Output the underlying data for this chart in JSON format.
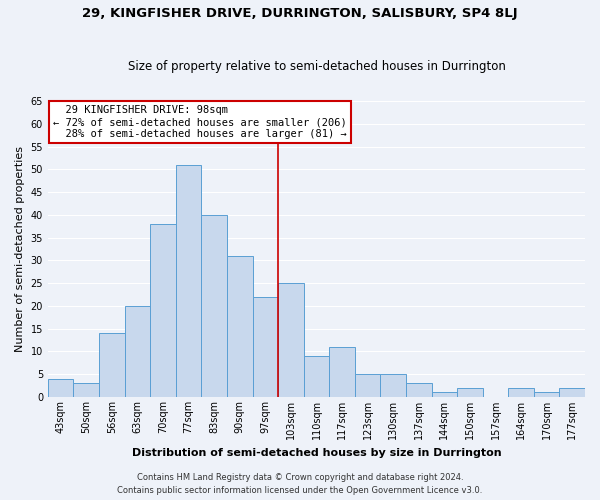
{
  "title": "29, KINGFISHER DRIVE, DURRINGTON, SALISBURY, SP4 8LJ",
  "subtitle": "Size of property relative to semi-detached houses in Durrington",
  "xlabel": "Distribution of semi-detached houses by size in Durrington",
  "ylabel": "Number of semi-detached properties",
  "bin_labels": [
    "43sqm",
    "50sqm",
    "56sqm",
    "63sqm",
    "70sqm",
    "77sqm",
    "83sqm",
    "90sqm",
    "97sqm",
    "103sqm",
    "110sqm",
    "117sqm",
    "123sqm",
    "130sqm",
    "137sqm",
    "144sqm",
    "150sqm",
    "157sqm",
    "164sqm",
    "170sqm",
    "177sqm"
  ],
  "bar_values": [
    4,
    3,
    14,
    20,
    38,
    51,
    40,
    31,
    22,
    25,
    9,
    11,
    5,
    5,
    3,
    1,
    2,
    0,
    2,
    1,
    2
  ],
  "bar_color": "#c8d8ed",
  "bar_edge_color": "#5a9fd4",
  "red_line_index": 8,
  "ylim": [
    0,
    65
  ],
  "yticks": [
    0,
    5,
    10,
    15,
    20,
    25,
    30,
    35,
    40,
    45,
    50,
    55,
    60,
    65
  ],
  "property_size": "98sqm",
  "pct_smaller": 72,
  "count_smaller": 206,
  "pct_larger": 28,
  "count_larger": 81,
  "annotation_box_color": "#ffffff",
  "annotation_box_edge": "#cc0000",
  "red_line_color": "#cc0000",
  "ann_line1": "29 KINGFISHER DRIVE: 98sqm",
  "ann_line2": "← 72% of semi-detached houses are smaller (206)",
  "ann_line3": "28% of semi-detached houses are larger (81) →",
  "footer1": "Contains HM Land Registry data © Crown copyright and database right 2024.",
  "footer2": "Contains public sector information licensed under the Open Government Licence v3.0.",
  "bg_color": "#eef2f9",
  "grid_color": "#ffffff",
  "title_fontsize": 9.5,
  "subtitle_fontsize": 8.5,
  "axis_label_fontsize": 8.0,
  "tick_fontsize": 7.0,
  "ann_fontsize": 7.5,
  "footer_fontsize": 6.0
}
